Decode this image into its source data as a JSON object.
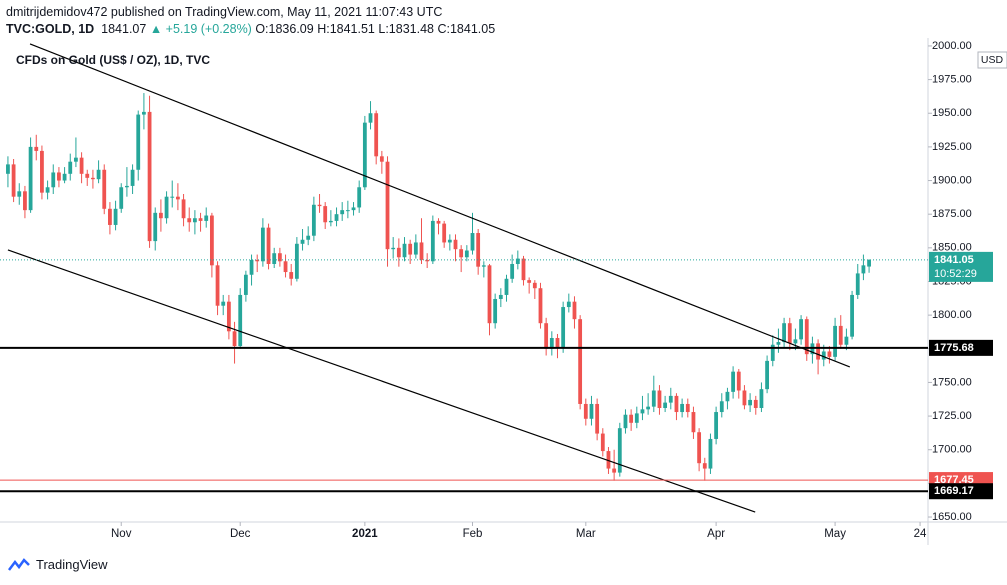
{
  "header": {
    "author": "dmitrijdemidov472 published on TradingView.com, May 11, 2021 11:07:43 UTC",
    "symbol": "TVC:GOLD, 1D",
    "last": "1841.07",
    "change": "▲ +5.19 (+0.28%)",
    "open": "O:1836.09",
    "high": "H:1841.51",
    "low": "L:1831.48",
    "close": "C:1841.05"
  },
  "footer": {
    "brand": "TradingView"
  },
  "chart_data": {
    "type": "candlestick",
    "title": "CFDs on Gold (US$ / OZ), 1D, TVC",
    "currency": "USD",
    "up_color": "#26a69a",
    "down_color": "#ef5350",
    "xlim": [
      -1.4,
      162.4
    ],
    "ylim": [
      1646.3,
      2005.9
    ],
    "xticks": [
      {
        "value": 20,
        "label": "Nov"
      },
      {
        "value": 41,
        "label": "Dec"
      },
      {
        "value": 63,
        "label": "2021"
      },
      {
        "value": 82,
        "label": "Feb"
      },
      {
        "value": 102,
        "label": "Mar"
      },
      {
        "value": 125,
        "label": "Apr"
      },
      {
        "value": 146,
        "label": "May"
      },
      {
        "value": 161,
        "label": "24"
      }
    ],
    "yticks": [
      {
        "value": 1650,
        "label": "1650.00"
      },
      {
        "value": 1675,
        "label": "1675.00"
      },
      {
        "value": 1700,
        "label": "1700.00"
      },
      {
        "value": 1725,
        "label": "1725.00"
      },
      {
        "value": 1750,
        "label": "1750.00"
      },
      {
        "value": 1775,
        "label": "1775.00"
      },
      {
        "value": 1800,
        "label": "1800.00"
      },
      {
        "value": 1825,
        "label": "1825.00"
      },
      {
        "value": 1850,
        "label": "1850.00"
      },
      {
        "value": 1875,
        "label": "1875.00"
      },
      {
        "value": 1900,
        "label": "1900.00"
      },
      {
        "value": 1925,
        "label": "1925.00"
      },
      {
        "value": 1950,
        "label": "1950.00"
      },
      {
        "value": 1975,
        "label": "1975.00"
      },
      {
        "value": 2000,
        "label": "2000.00"
      }
    ],
    "last_price": 1841.05,
    "countdown": "10:52:29",
    "levels": [
      {
        "value": 1775.68,
        "color": "#000000"
      },
      {
        "value": 1677.45,
        "color": "#ef5350"
      },
      {
        "value": 1669.17,
        "color": "#000000"
      }
    ],
    "trend_lines": [
      {
        "x": [
          3.9,
          148.6
        ],
        "y": [
          2001.5,
          1761.5
        ]
      },
      {
        "x": [
          0,
          131.9
        ],
        "y": [
          1848.4,
          1653.7
        ]
      }
    ],
    "ohlc": [
      [
        1905,
        1918,
        1895,
        1912
      ],
      [
        1912,
        1916,
        1884,
        1888
      ],
      [
        1888,
        1898,
        1882,
        1892
      ],
      [
        1892,
        1896,
        1872,
        1878
      ],
      [
        1878,
        1932,
        1876,
        1925
      ],
      [
        1925,
        1934,
        1915,
        1922
      ],
      [
        1922,
        1926,
        1886,
        1891
      ],
      [
        1891,
        1900,
        1886,
        1895
      ],
      [
        1895,
        1912,
        1890,
        1906
      ],
      [
        1906,
        1910,
        1895,
        1900
      ],
      [
        1900,
        1910,
        1898,
        1905
      ],
      [
        1905,
        1920,
        1900,
        1914
      ],
      [
        1914,
        1932,
        1910,
        1917
      ],
      [
        1917,
        1921,
        1898,
        1905
      ],
      [
        1905,
        1908,
        1896,
        1902
      ],
      [
        1902,
        1908,
        1894,
        1901
      ],
      [
        1901,
        1915,
        1898,
        1908
      ],
      [
        1908,
        1912,
        1875,
        1879
      ],
      [
        1879,
        1884,
        1860,
        1867
      ],
      [
        1867,
        1885,
        1863,
        1879
      ],
      [
        1879,
        1898,
        1876,
        1895
      ],
      [
        1895,
        1910,
        1888,
        1896
      ],
      [
        1896,
        1912,
        1890,
        1908
      ],
      [
        1908,
        1952,
        1900,
        1949
      ],
      [
        1949,
        1965,
        1938,
        1951
      ],
      [
        1951,
        1963,
        1850,
        1855
      ],
      [
        1855,
        1880,
        1848,
        1876
      ],
      [
        1876,
        1886,
        1862,
        1872
      ],
      [
        1872,
        1892,
        1868,
        1888
      ],
      [
        1888,
        1900,
        1880,
        1888
      ],
      [
        1888,
        1898,
        1878,
        1886
      ],
      [
        1886,
        1890,
        1866,
        1872
      ],
      [
        1872,
        1880,
        1862,
        1869
      ],
      [
        1869,
        1878,
        1860,
        1872
      ],
      [
        1872,
        1876,
        1862,
        1870
      ],
      [
        1870,
        1880,
        1865,
        1874
      ],
      [
        1874,
        1876,
        1828,
        1837
      ],
      [
        1837,
        1840,
        1800,
        1807
      ],
      [
        1807,
        1815,
        1800,
        1810
      ],
      [
        1810,
        1815,
        1782,
        1788
      ],
      [
        1788,
        1795,
        1764,
        1777
      ],
      [
        1777,
        1820,
        1775,
        1815
      ],
      [
        1815,
        1833,
        1810,
        1830
      ],
      [
        1830,
        1845,
        1822,
        1841
      ],
      [
        1841,
        1845,
        1832,
        1840
      ],
      [
        1840,
        1872,
        1836,
        1865
      ],
      [
        1865,
        1868,
        1834,
        1838
      ],
      [
        1838,
        1850,
        1835,
        1846
      ],
      [
        1846,
        1850,
        1836,
        1840
      ],
      [
        1840,
        1845,
        1828,
        1832
      ],
      [
        1832,
        1838,
        1822,
        1827
      ],
      [
        1827,
        1858,
        1825,
        1853
      ],
      [
        1853,
        1864,
        1848,
        1856
      ],
      [
        1856,
        1866,
        1852,
        1859
      ],
      [
        1859,
        1888,
        1855,
        1882
      ],
      [
        1882,
        1890,
        1876,
        1881
      ],
      [
        1881,
        1884,
        1864,
        1869
      ],
      [
        1869,
        1878,
        1866,
        1870
      ],
      [
        1870,
        1880,
        1866,
        1875
      ],
      [
        1875,
        1884,
        1870,
        1878
      ],
      [
        1878,
        1885,
        1872,
        1878
      ],
      [
        1878,
        1884,
        1874,
        1880
      ],
      [
        1880,
        1900,
        1876,
        1895
      ],
      [
        1895,
        1948,
        1893,
        1943
      ],
      [
        1943,
        1959,
        1938,
        1950
      ],
      [
        1950,
        1952,
        1912,
        1918
      ],
      [
        1918,
        1922,
        1905,
        1914
      ],
      [
        1914,
        1918,
        1836,
        1849
      ],
      [
        1849,
        1858,
        1842,
        1850
      ],
      [
        1850,
        1857,
        1836,
        1843
      ],
      [
        1843,
        1858,
        1840,
        1853
      ],
      [
        1853,
        1856,
        1838,
        1845
      ],
      [
        1845,
        1860,
        1842,
        1854
      ],
      [
        1854,
        1872,
        1838,
        1841
      ],
      [
        1841,
        1846,
        1835,
        1840
      ],
      [
        1840,
        1874,
        1838,
        1870
      ],
      [
        1870,
        1872,
        1860,
        1868
      ],
      [
        1868,
        1870,
        1850,
        1854
      ],
      [
        1854,
        1860,
        1848,
        1856
      ],
      [
        1856,
        1860,
        1840,
        1849
      ],
      [
        1849,
        1852,
        1832,
        1843
      ],
      [
        1843,
        1852,
        1840,
        1848
      ],
      [
        1848,
        1876,
        1845,
        1861
      ],
      [
        1861,
        1864,
        1830,
        1836
      ],
      [
        1836,
        1840,
        1828,
        1837
      ],
      [
        1837,
        1838,
        1785,
        1794
      ],
      [
        1794,
        1816,
        1790,
        1812
      ],
      [
        1812,
        1820,
        1806,
        1815
      ],
      [
        1815,
        1830,
        1810,
        1827
      ],
      [
        1827,
        1845,
        1824,
        1838
      ],
      [
        1838,
        1848,
        1834,
        1842
      ],
      [
        1842,
        1844,
        1822,
        1826
      ],
      [
        1826,
        1828,
        1816,
        1824
      ],
      [
        1824,
        1826,
        1812,
        1820
      ],
      [
        1820,
        1824,
        1790,
        1794
      ],
      [
        1794,
        1798,
        1770,
        1775
      ],
      [
        1775,
        1788,
        1770,
        1783
      ],
      [
        1783,
        1786,
        1768,
        1776
      ],
      [
        1776,
        1810,
        1772,
        1806
      ],
      [
        1806,
        1816,
        1802,
        1810
      ],
      [
        1810,
        1814,
        1790,
        1797
      ],
      [
        1797,
        1800,
        1730,
        1734
      ],
      [
        1734,
        1738,
        1718,
        1723
      ],
      [
        1723,
        1740,
        1718,
        1734
      ],
      [
        1734,
        1738,
        1707,
        1712
      ],
      [
        1712,
        1716,
        1695,
        1699
      ],
      [
        1699,
        1702,
        1682,
        1686
      ],
      [
        1686,
        1700,
        1677,
        1683
      ],
      [
        1683,
        1720,
        1680,
        1716
      ],
      [
        1716,
        1730,
        1712,
        1726
      ],
      [
        1726,
        1730,
        1714,
        1720
      ],
      [
        1720,
        1732,
        1716,
        1727
      ],
      [
        1727,
        1740,
        1722,
        1730
      ],
      [
        1730,
        1742,
        1726,
        1732
      ],
      [
        1732,
        1755,
        1728,
        1744
      ],
      [
        1744,
        1748,
        1726,
        1731
      ],
      [
        1731,
        1740,
        1728,
        1735
      ],
      [
        1735,
        1746,
        1730,
        1740
      ],
      [
        1740,
        1742,
        1722,
        1728
      ],
      [
        1728,
        1738,
        1724,
        1734
      ],
      [
        1734,
        1738,
        1724,
        1728
      ],
      [
        1728,
        1732,
        1708,
        1713
      ],
      [
        1713,
        1716,
        1684,
        1690
      ],
      [
        1690,
        1694,
        1677,
        1686
      ],
      [
        1686,
        1712,
        1682,
        1708
      ],
      [
        1708,
        1732,
        1704,
        1728
      ],
      [
        1728,
        1742,
        1724,
        1736
      ],
      [
        1736,
        1746,
        1730,
        1743
      ],
      [
        1743,
        1762,
        1738,
        1758
      ],
      [
        1758,
        1760,
        1738,
        1744
      ],
      [
        1744,
        1748,
        1730,
        1733
      ],
      [
        1733,
        1742,
        1728,
        1737
      ],
      [
        1737,
        1740,
        1726,
        1731
      ],
      [
        1731,
        1750,
        1728,
        1745
      ],
      [
        1745,
        1770,
        1742,
        1766
      ],
      [
        1766,
        1785,
        1762,
        1778
      ],
      [
        1778,
        1790,
        1772,
        1780
      ],
      [
        1780,
        1798,
        1776,
        1794
      ],
      [
        1794,
        1798,
        1774,
        1779
      ],
      [
        1779,
        1790,
        1774,
        1782
      ],
      [
        1782,
        1800,
        1778,
        1797
      ],
      [
        1797,
        1799,
        1766,
        1771
      ],
      [
        1771,
        1784,
        1764,
        1779
      ],
      [
        1779,
        1782,
        1756,
        1767
      ],
      [
        1767,
        1778,
        1762,
        1773
      ],
      [
        1773,
        1777,
        1764,
        1769
      ],
      [
        1769,
        1798,
        1766,
        1792
      ],
      [
        1792,
        1800,
        1775,
        1778
      ],
      [
        1778,
        1790,
        1774,
        1784
      ],
      [
        1784,
        1818,
        1782,
        1815
      ],
      [
        1815,
        1838,
        1812,
        1831
      ],
      [
        1831,
        1845,
        1826,
        1837
      ],
      [
        1836.09,
        1841.51,
        1831.48,
        1841.05
      ]
    ]
  }
}
